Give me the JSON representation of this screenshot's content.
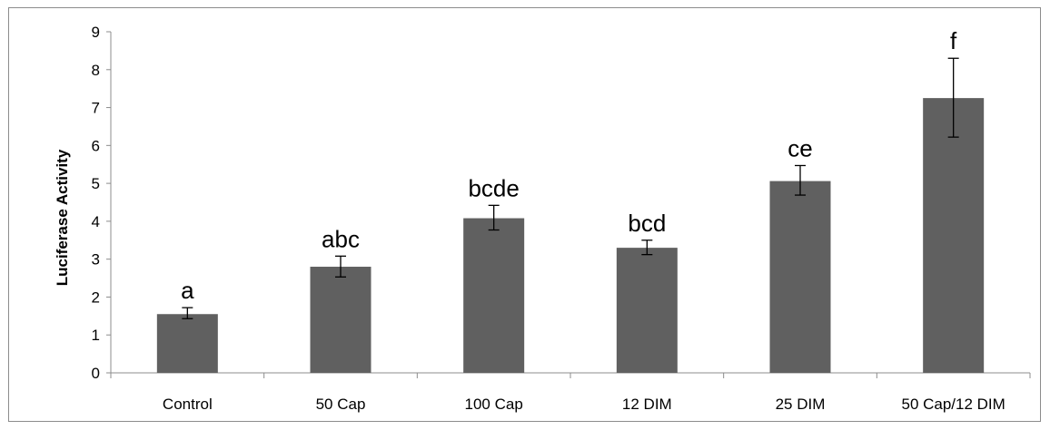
{
  "chart_data": {
    "type": "bar",
    "title": "",
    "xlabel": "",
    "ylabel": "Luciferase Activity",
    "ylim": [
      0,
      9
    ],
    "yticks": [
      0,
      1,
      2,
      3,
      4,
      5,
      6,
      7,
      8,
      9
    ],
    "grid": false,
    "legend": "none",
    "bar_color": "#606060",
    "categories": [
      "Control",
      "50 Cap",
      "100 Cap",
      "12 DIM",
      "25 DIM",
      "50 Cap/12 DIM"
    ],
    "values": [
      1.55,
      2.8,
      4.08,
      3.3,
      5.06,
      7.25
    ],
    "error_low": [
      1.43,
      2.53,
      3.77,
      3.12,
      4.69,
      6.22
    ],
    "error_high": [
      1.72,
      3.08,
      4.42,
      3.5,
      5.47,
      8.3
    ],
    "significance_labels": [
      "a",
      "abc",
      "bcde",
      "bcd",
      "ce",
      "f"
    ]
  }
}
